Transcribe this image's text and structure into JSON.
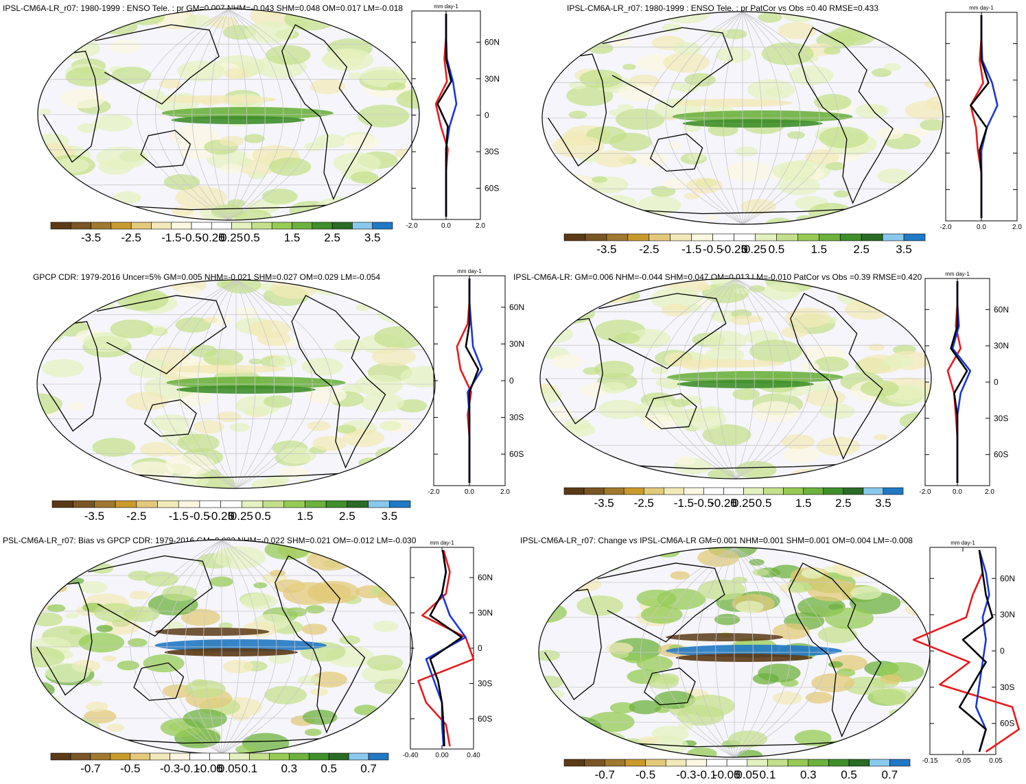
{
  "panels": [
    {
      "title": "IPSL-CM6A-LR_r07: 1980-1999 : ENSO Tele. : pr GM=0.007 NHM=-0.043 SHM=0.048 OM=0.017 LM=-0.018",
      "unit": "mm day-1",
      "chart_data": {
        "type": "heatmap",
        "colorbar": {
          "levels": [
            "-3.5",
            "-2.5",
            "-1.5",
            "-0.5",
            "-0.25",
            "0",
            "0.25",
            "0.5",
            "1.5",
            "2.5",
            "3.5"
          ]
        },
        "zonal_profile": {
          "lat_ticks": [
            "60N",
            "30N",
            "0",
            "30S",
            "60S"
          ],
          "x_ticks": [
            "-2.0",
            "0.0",
            "2.0"
          ],
          "series": [
            {
              "color": "#e8191b",
              "values": [
                0,
                0,
                -0.1,
                0.05,
                -0.6,
                -0.3,
                0.1,
                0,
                0,
                0
              ]
            },
            {
              "color": "#1a36d8",
              "values": [
                0,
                0,
                0.05,
                0.4,
                0.6,
                0.2,
                0,
                0,
                0,
                0
              ]
            },
            {
              "color": "#000000",
              "values": [
                0,
                0,
                0,
                0.3,
                -0.5,
                0.1,
                0,
                0,
                0,
                0
              ]
            }
          ]
        }
      }
    },
    {
      "title": "IPSL-CM6A-LR_r07: 1980-1999 : ENSO Tele. : pr PatCor vs Obs =0.40 RMSE=0.433",
      "unit": "mm day-1",
      "chart_data": {
        "type": "heatmap",
        "colorbar": {
          "levels": [
            "-3.5",
            "-2.5",
            "-1.5",
            "-0.5",
            "-0.25",
            "0",
            "0.25",
            "0.5",
            "1.5",
            "2.5",
            "3.5"
          ]
        },
        "zonal_profile": {
          "lat_ticks": [],
          "x_ticks": [
            "-2.0",
            "0.0",
            "2.0"
          ],
          "series": [
            {
              "color": "#e8191b",
              "values": [
                0,
                0,
                -0.1,
                0.1,
                -0.6,
                -0.3,
                -0.2,
                0,
                0,
                0
              ]
            },
            {
              "color": "#1a36d8",
              "values": [
                0,
                0,
                0.05,
                0.6,
                0.9,
                0.3,
                0,
                0,
                0,
                0
              ]
            },
            {
              "color": "#000000",
              "values": [
                0,
                0,
                0,
                0.4,
                -0.6,
                0.3,
                -0.1,
                0,
                0,
                0
              ]
            }
          ]
        }
      }
    },
    {
      "title": "GPCP CDR: 1979-2016 Uncer=5% GM=0.005 NHM=-0.021 SHM=0.027 OM=0.029 LM=-0.054",
      "unit": "mm day-1",
      "chart_data": {
        "type": "heatmap",
        "colorbar": {
          "levels": [
            "-3.5",
            "-2.5",
            "-1.5",
            "-0.5",
            "-0.25",
            "0",
            "0.25",
            "0.5",
            "1.5",
            "2.5",
            "3.5"
          ]
        },
        "zonal_profile": {
          "lat_ticks": [
            "60N",
            "30N",
            "0",
            "30S",
            "60S"
          ],
          "x_ticks": [
            "-2.0",
            "0.0",
            "2.0"
          ],
          "series": [
            {
              "color": "#e8191b",
              "values": [
                0,
                0,
                -0.1,
                -0.7,
                -0.5,
                0.1,
                -0.1,
                0,
                0,
                0
              ]
            },
            {
              "color": "#1a36d8",
              "values": [
                0,
                0,
                0.1,
                0.2,
                0.7,
                -0.1,
                0,
                0,
                0,
                0
              ]
            },
            {
              "color": "#000000",
              "values": [
                0,
                0,
                0,
                -0.2,
                0.5,
                0,
                0,
                0,
                0,
                0
              ]
            }
          ]
        }
      }
    },
    {
      "title": "IPSL-CM6A-LR: GM=0.006 NHM=-0.044 SHM=0.047 OM=0.013 LM=-0.010 PatCor vs Obs =0.39 RMSE=0.420",
      "unit": "mm day-1",
      "chart_data": {
        "type": "heatmap",
        "colorbar": {
          "levels": [
            "-3.5",
            "-2.5",
            "-1.5",
            "-0.5",
            "-0.25",
            "0",
            "0.25",
            "0.5",
            "1.5",
            "2.5",
            "3.5"
          ]
        },
        "zonal_profile": {
          "lat_ticks": [
            "60N",
            "30N",
            "0",
            "30S",
            "60S"
          ],
          "x_ticks": [
            "-2.0",
            "0.0",
            "2.0"
          ],
          "series": [
            {
              "color": "#e8191b",
              "values": [
                0,
                0,
                -0.1,
                0.2,
                -0.6,
                -0.2,
                -0.1,
                0,
                0,
                0
              ]
            },
            {
              "color": "#1a36d8",
              "values": [
                0,
                0,
                0.1,
                -0.3,
                0.8,
                0.2,
                0,
                0,
                0,
                0
              ]
            },
            {
              "color": "#000000",
              "values": [
                0,
                0,
                0,
                -0.4,
                0.6,
                -0.2,
                0,
                0,
                0,
                0
              ]
            }
          ]
        }
      }
    },
    {
      "title": "PSL-CM6A-LR_r07: Bias vs GPCP CDR: 1979-2016 GM=0.002 NHM=-0.022 SHM=0.021 OM=-0.012 LM=-0.030",
      "unit": "mm day-1",
      "chart_data": {
        "type": "heatmap",
        "colorbar": {
          "levels": [
            "-0.7",
            "-0.5",
            "-0.3",
            "-0.1",
            "-0.05",
            "0",
            "0.05",
            "0.1",
            "0.3",
            "0.5",
            "0.7"
          ]
        },
        "zonal_profile": {
          "lat_ticks": [
            "60N",
            "30N",
            "0",
            "30S",
            "60S"
          ],
          "x_ticks": [
            "-0.40",
            "0.00",
            "0.40"
          ],
          "series": [
            {
              "color": "#e8191b",
              "values": [
                0.02,
                0.1,
                0.05,
                -0.25,
                0.3,
                0.4,
                -0.3,
                -0.2,
                0.05,
                0.1
              ]
            },
            {
              "color": "#1a36d8",
              "values": [
                0.01,
                0.05,
                0,
                0.1,
                0.3,
                -0.2,
                -0.1,
                0,
                0,
                0.02
              ]
            },
            {
              "color": "#000000",
              "values": [
                0.01,
                0.05,
                0,
                -0.15,
                0.25,
                -0.15,
                -0.05,
                0,
                0.02,
                0.03
              ]
            }
          ]
        }
      }
    },
    {
      "title": "IPSL-CM6A-LR_r07: Change vs IPSL-CM6A-LR GM=0.001 NHM=0.001 SHM=0.001 OM=0.004 LM=-0.008",
      "unit": "mm day-1",
      "chart_data": {
        "type": "heatmap",
        "colorbar": {
          "levels": [
            "-0.7",
            "-0.5",
            "-0.3",
            "-0.1",
            "-0.05",
            "0",
            "0.05",
            "0.1",
            "0.3",
            "0.5",
            "0.7"
          ]
        },
        "zonal_profile": {
          "lat_ticks": [
            "60N",
            "30N",
            "0",
            "30S",
            "60S"
          ],
          "x_ticks": [
            "-0.15",
            "-0.05",
            "0.05"
          ],
          "series": [
            {
              "color": "#e8191b",
              "values": [
                0,
                0.01,
                -0.02,
                -0.04,
                -0.2,
                -0.03,
                -0.12,
                0.1,
                0.12,
                0.02
              ]
            },
            {
              "color": "#1a36d8",
              "values": [
                0,
                0.02,
                0.03,
                0.01,
                0.02,
                0.01,
                0,
                -0.01,
                0.02,
                0
              ]
            },
            {
              "color": "#000000",
              "values": [
                0,
                0.01,
                0.02,
                0.04,
                -0.05,
                0.02,
                -0.02,
                -0.06,
                0.02,
                0
              ]
            }
          ]
        }
      }
    }
  ],
  "colors": {
    "palette": [
      "#5b3a16",
      "#7a5525",
      "#a0782e",
      "#c99a2e",
      "#e3c97a",
      "#f3e9b8",
      "#fbf7e1",
      "#ffffff",
      "#ffffff",
      "#e4f1c0",
      "#c4e08c",
      "#96cb55",
      "#6db13e",
      "#3f8f2b",
      "#2a6b25",
      "#8ac9ee",
      "#2178c4"
    ],
    "land_outline": "#000000",
    "grid": "#c8c8c8",
    "ocean_bg": "#f5f5fb"
  }
}
